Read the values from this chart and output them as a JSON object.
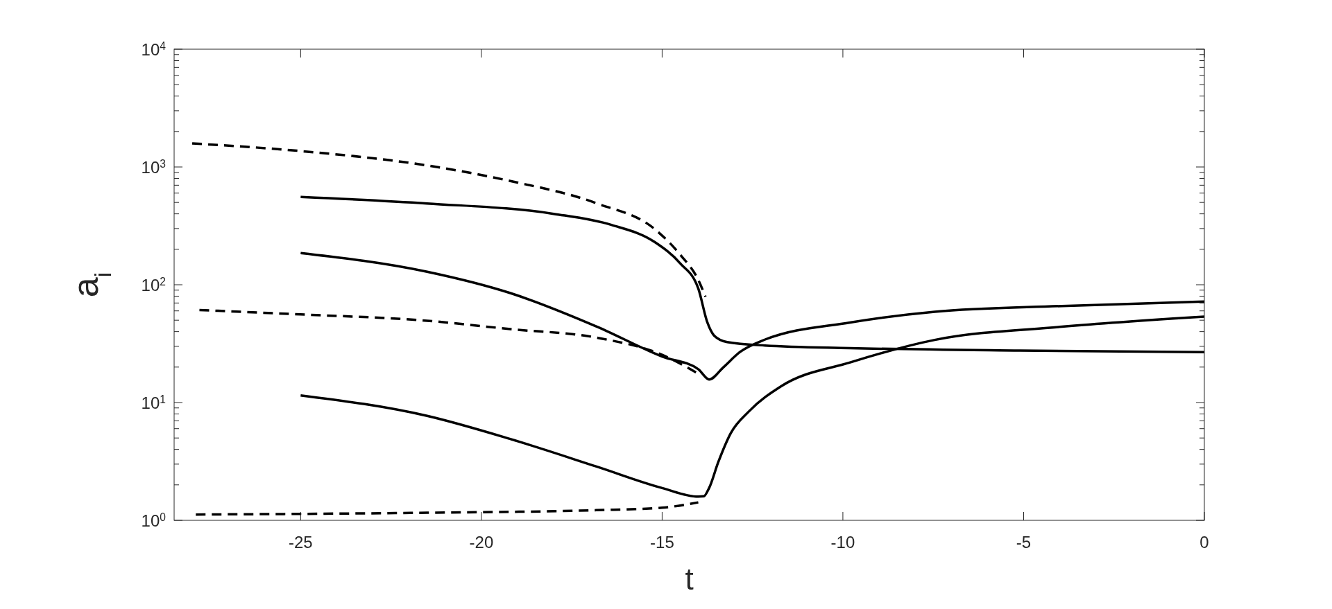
{
  "chart_data": {
    "type": "line",
    "xlabel": "t",
    "ylabel": "a$_{i}$",
    "log": "y",
    "grid": false,
    "xlim": [
      -28.5,
      0
    ],
    "xticks": [
      -25,
      -20,
      -15,
      -10,
      -5,
      0
    ],
    "ylim": [
      1,
      10000
    ],
    "yticks": [
      {
        "value": 1,
        "label": "10$^{0}$"
      },
      {
        "value": 10,
        "label": "10$^{1}$"
      },
      {
        "value": 100,
        "label": "10$^{2}$"
      },
      {
        "value": 1000,
        "label": "10$^{3}$"
      },
      {
        "value": 10000,
        "label": "10$^{4}$"
      }
    ],
    "series": [
      {
        "color": "#000000",
        "line_style": "dashed",
        "x": [
          -28,
          -25,
          -21.5,
          -19.2,
          -16.8,
          -15.2,
          -14.5,
          -14,
          -13.8
        ],
        "values": [
          1585,
          1365,
          1030,
          760,
          490,
          296,
          180,
          110,
          79
        ]
      },
      {
        "color": "#000000",
        "line_style": "solid",
        "x": [
          -25,
          -21.5,
          -18,
          -16.4,
          -15.2,
          -14.5,
          -14,
          -13.75,
          -13.56,
          -13.2,
          -12.15,
          -9.8,
          -5.1,
          0
        ],
        "values": [
          557,
          490,
          400,
          322,
          230,
          152,
          93,
          48,
          37,
          32.6,
          30.5,
          29,
          27.6,
          26.8
        ]
      },
      {
        "color": "#000000",
        "line_style": "solid",
        "x": [
          -25,
          -21.5,
          -19.2,
          -16.8,
          -15,
          -14,
          -13.7,
          -13.3,
          -12.85,
          -12.15,
          -9.8,
          -7.46,
          -3.94,
          0
        ],
        "values": [
          186,
          129,
          85,
          44,
          24.6,
          19.2,
          15.7,
          20,
          26.8,
          34.3,
          47.8,
          59,
          66,
          72
        ]
      },
      {
        "color": "#000000",
        "line_style": "dashed",
        "x": [
          -27.8,
          -25,
          -21.5,
          -19.2,
          -16.8,
          -15,
          -14
        ],
        "values": [
          61,
          56,
          49.5,
          42,
          35.5,
          25.4,
          17.6
        ]
      },
      {
        "color": "#000000",
        "line_style": "solid",
        "x": [
          -25,
          -21.5,
          -19.2,
          -16.8,
          -15,
          -14,
          -13.85,
          -13.7,
          -13.45,
          -13.1,
          -12.6,
          -11.7,
          -9.8,
          -7.46,
          -3.94,
          0
        ],
        "values": [
          11.5,
          7.7,
          4.9,
          2.85,
          1.88,
          1.59,
          1.6,
          1.88,
          3.1,
          5.5,
          8.4,
          13.8,
          21.9,
          34,
          44,
          53.6
        ]
      },
      {
        "color": "#000000",
        "line_style": "dashed",
        "x": [
          -27.9,
          -21.5,
          -16.8,
          -15,
          -14
        ],
        "values": [
          1.12,
          1.16,
          1.22,
          1.28,
          1.42
        ]
      }
    ]
  }
}
